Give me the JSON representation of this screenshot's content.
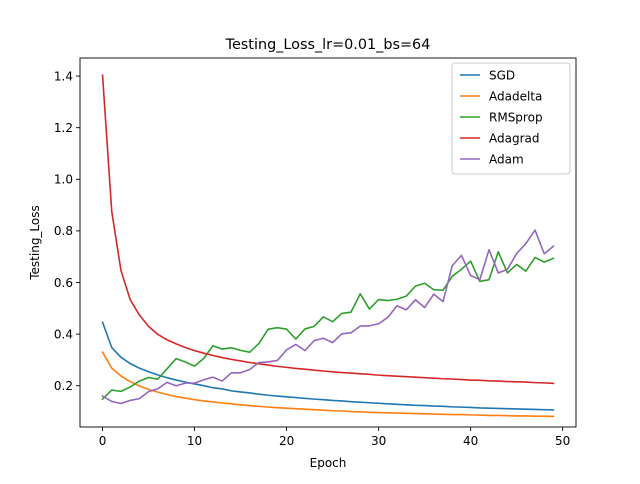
{
  "chart_data": {
    "type": "line",
    "title": "Testing_Loss_lr=0.01_bs=64",
    "xlabel": "Epoch",
    "ylabel": "Testing_Loss",
    "xlim": [
      -2.45,
      51.45
    ],
    "ylim": [
      0.04,
      1.47
    ],
    "xticks": [
      0,
      10,
      20,
      30,
      40,
      50
    ],
    "yticks": [
      0.2,
      0.4,
      0.6,
      0.8,
      1.0,
      1.2,
      1.4
    ],
    "xtick_labels": [
      "0",
      "10",
      "20",
      "30",
      "40",
      "50"
    ],
    "ytick_labels": [
      "0.2",
      "0.4",
      "0.6",
      "0.8",
      "1.0",
      "1.2",
      "1.4"
    ],
    "grid": false,
    "legend_position": "top-right",
    "x": [
      0,
      1,
      2,
      3,
      4,
      5,
      6,
      7,
      8,
      9,
      10,
      11,
      12,
      13,
      14,
      15,
      16,
      17,
      18,
      19,
      20,
      21,
      22,
      23,
      24,
      25,
      26,
      27,
      28,
      29,
      30,
      31,
      32,
      33,
      34,
      35,
      36,
      37,
      38,
      39,
      40,
      41,
      42,
      43,
      44,
      45,
      46,
      47,
      48,
      49
    ],
    "series": [
      {
        "name": "SGD",
        "color": "#1f77b4",
        "values": [
          0.446,
          0.348,
          0.31,
          0.286,
          0.268,
          0.254,
          0.242,
          0.231,
          0.222,
          0.214,
          0.207,
          0.2,
          0.192,
          0.188,
          0.18,
          0.176,
          0.172,
          0.167,
          0.163,
          0.16,
          0.157,
          0.154,
          0.151,
          0.148,
          0.146,
          0.143,
          0.141,
          0.138,
          0.136,
          0.134,
          0.132,
          0.13,
          0.128,
          0.126,
          0.124,
          0.123,
          0.121,
          0.12,
          0.118,
          0.117,
          0.116,
          0.114,
          0.113,
          0.112,
          0.111,
          0.11,
          0.109,
          0.108,
          0.107,
          0.106
        ]
      },
      {
        "name": "Adadelta",
        "color": "#ff7f0e",
        "values": [
          0.33,
          0.268,
          0.238,
          0.216,
          0.199,
          0.186,
          0.175,
          0.166,
          0.158,
          0.152,
          0.146,
          0.141,
          0.137,
          0.133,
          0.13,
          0.126,
          0.123,
          0.12,
          0.117,
          0.115,
          0.113,
          0.111,
          0.109,
          0.107,
          0.105,
          0.103,
          0.102,
          0.1,
          0.099,
          0.097,
          0.096,
          0.095,
          0.094,
          0.093,
          0.092,
          0.091,
          0.09,
          0.089,
          0.088,
          0.088,
          0.087,
          0.086,
          0.085,
          0.085,
          0.084,
          0.083,
          0.083,
          0.082,
          0.082,
          0.081
        ]
      },
      {
        "name": "RMSprop",
        "color": "#2ca02c",
        "values": [
          0.148,
          0.183,
          0.178,
          0.195,
          0.218,
          0.232,
          0.225,
          0.265,
          0.305,
          0.292,
          0.276,
          0.306,
          0.355,
          0.342,
          0.347,
          0.337,
          0.33,
          0.364,
          0.419,
          0.425,
          0.419,
          0.381,
          0.42,
          0.43,
          0.467,
          0.448,
          0.48,
          0.485,
          0.556,
          0.497,
          0.534,
          0.53,
          0.535,
          0.547,
          0.586,
          0.597,
          0.572,
          0.57,
          0.624,
          0.651,
          0.683,
          0.604,
          0.611,
          0.719,
          0.637,
          0.67,
          0.644,
          0.697,
          0.679,
          0.694
        ]
      },
      {
        "name": "Adagrad",
        "color": "#d62728",
        "values": [
          1.403,
          0.875,
          0.647,
          0.534,
          0.474,
          0.43,
          0.399,
          0.378,
          0.362,
          0.348,
          0.336,
          0.326,
          0.317,
          0.309,
          0.302,
          0.296,
          0.29,
          0.285,
          0.28,
          0.275,
          0.271,
          0.267,
          0.264,
          0.26,
          0.257,
          0.254,
          0.251,
          0.249,
          0.246,
          0.244,
          0.241,
          0.239,
          0.237,
          0.235,
          0.233,
          0.231,
          0.229,
          0.227,
          0.226,
          0.224,
          0.222,
          0.221,
          0.219,
          0.218,
          0.216,
          0.215,
          0.214,
          0.212,
          0.211,
          0.209
        ]
      },
      {
        "name": "Adam",
        "color": "#9467bd",
        "values": [
          0.16,
          0.139,
          0.131,
          0.143,
          0.15,
          0.177,
          0.188,
          0.213,
          0.2,
          0.21,
          0.21,
          0.223,
          0.233,
          0.218,
          0.25,
          0.25,
          0.263,
          0.29,
          0.292,
          0.298,
          0.339,
          0.36,
          0.336,
          0.375,
          0.384,
          0.367,
          0.401,
          0.405,
          0.431,
          0.432,
          0.44,
          0.465,
          0.51,
          0.494,
          0.533,
          0.503,
          0.555,
          0.526,
          0.665,
          0.705,
          0.627,
          0.611,
          0.727,
          0.637,
          0.651,
          0.712,
          0.751,
          0.803,
          0.711,
          0.741
        ]
      }
    ]
  }
}
